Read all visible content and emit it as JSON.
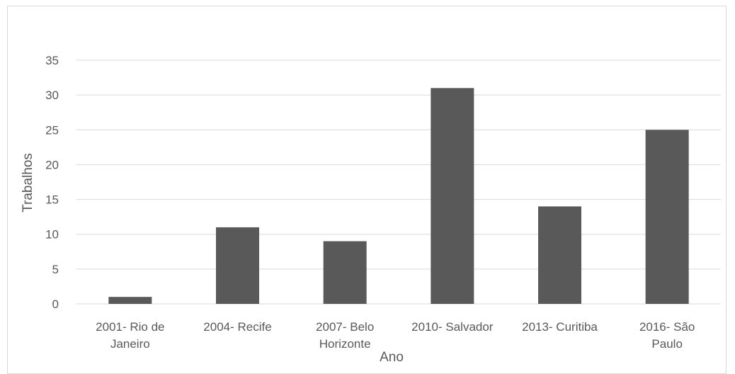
{
  "chart_data": {
    "type": "bar",
    "categories": [
      [
        "2001- Rio de",
        "Janeiro"
      ],
      [
        "2004- Recife"
      ],
      [
        "2007- Belo",
        "Horizonte"
      ],
      [
        "2010- Salvador"
      ],
      [
        "2013- Curitiba"
      ],
      [
        "2016- São",
        "Paulo"
      ]
    ],
    "values": [
      1,
      11,
      9,
      31,
      14,
      25
    ],
    "xlabel": "Ano",
    "ylabel": "Trabalhos",
    "ylim": [
      0,
      35
    ],
    "yticks": [
      0,
      5,
      10,
      15,
      20,
      25,
      30,
      35
    ],
    "grid": true,
    "bar_color": "#595959",
    "grid_color": "#d9d9d9",
    "text_color": "#595959"
  }
}
